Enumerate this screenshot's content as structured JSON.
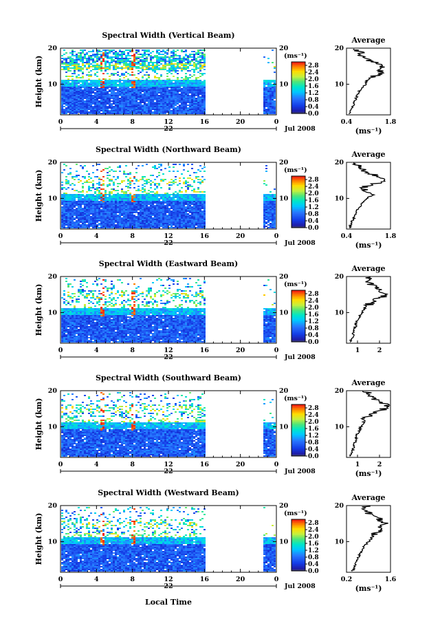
{
  "figure": {
    "ylabel": "Height (km)",
    "xlabel": "Local Time",
    "date_label": "Jul 2008",
    "day_label": "22",
    "x_ticks": [
      "0",
      "4",
      "8",
      "12",
      "16",
      "20",
      "0"
    ],
    "y_ticks": [
      "20",
      "10"
    ],
    "avg_title": "Average",
    "unit_label": "(ms⁻¹)",
    "colorbar_ticks": [
      "2.8",
      "2.4",
      "2.0",
      "1.6",
      "1.2",
      "0.8",
      "0.4",
      "0.0"
    ]
  },
  "chart_data": [
    {
      "type": "heatmap",
      "title": "Spectral Width (Vertical Beam)",
      "xlabel": "Local Time",
      "ylabel": "Height (km)",
      "xlim": [
        0,
        24
      ],
      "ylim": [
        1.5,
        20
      ],
      "data_until_hour": 16,
      "resume_hour": 22.5,
      "colorbar": {
        "label": "(ms⁻¹)",
        "range": [
          0,
          3.0
        ],
        "ticks": [
          0.0,
          0.4,
          0.8,
          1.2,
          1.6,
          2.0,
          2.4,
          2.8
        ]
      },
      "average_profile": {
        "title": "Average",
        "xlabel": "(ms⁻¹)",
        "xlim": [
          0.4,
          1.8
        ],
        "x_ticks": [
          "0.4",
          "1.8"
        ],
        "y_ticks": [
          "20",
          "10"
        ],
        "height_km": [
          2,
          3,
          4,
          5,
          6,
          7,
          8,
          9,
          10,
          11,
          12,
          13,
          14,
          15,
          16,
          17,
          18,
          19,
          20
        ],
        "values": [
          0.5,
          0.55,
          0.6,
          0.65,
          0.7,
          0.75,
          0.8,
          0.9,
          1.0,
          1.05,
          1.2,
          1.45,
          1.55,
          1.6,
          1.3,
          1.0,
          0.85,
          0.8,
          0.75
        ]
      }
    },
    {
      "type": "heatmap",
      "title": "Spectral Width (Northward Beam)",
      "xlabel": "Local Time",
      "ylabel": "Height (km)",
      "xlim": [
        0,
        24
      ],
      "ylim": [
        1.5,
        20
      ],
      "data_until_hour": 16,
      "resume_hour": 22.5,
      "colorbar": {
        "label": "(ms⁻¹)",
        "range": [
          0,
          3.0
        ],
        "ticks": [
          0.0,
          0.4,
          0.8,
          1.2,
          1.6,
          2.0,
          2.4,
          2.8
        ]
      },
      "average_profile": {
        "title": "Average",
        "xlabel": "(ms⁻¹)",
        "xlim": [
          0.4,
          1.8
        ],
        "x_ticks": [
          "0.4",
          "1.8"
        ],
        "y_ticks": [
          "20",
          "10"
        ],
        "height_km": [
          2,
          3,
          4,
          5,
          6,
          7,
          8,
          9,
          10,
          11,
          12,
          13,
          14,
          15,
          16,
          17,
          18,
          19,
          20
        ],
        "values": [
          0.5,
          0.55,
          0.6,
          0.65,
          0.7,
          0.75,
          0.85,
          0.95,
          1.05,
          1.25,
          1.0,
          0.9,
          1.3,
          1.55,
          1.45,
          1.1,
          0.9,
          0.8,
          0.7
        ]
      }
    },
    {
      "type": "heatmap",
      "title": "Spectral Width (Eastward Beam)",
      "xlabel": "Local Time",
      "ylabel": "Height (km)",
      "xlim": [
        0,
        24
      ],
      "ylim": [
        1.5,
        20
      ],
      "data_until_hour": 16,
      "resume_hour": 22.5,
      "colorbar": {
        "label": "(ms⁻¹)",
        "range": [
          0,
          3.0
        ],
        "ticks": [
          0.0,
          0.4,
          0.8,
          1.2,
          1.6,
          2.0,
          2.4,
          2.8
        ]
      },
      "average_profile": {
        "title": "Average",
        "xlabel": "",
        "xlim": [
          0.5,
          2.5
        ],
        "x_ticks": [
          "1",
          "2"
        ],
        "y_ticks": [
          "20",
          "10"
        ],
        "height_km": [
          2,
          3,
          4,
          5,
          6,
          7,
          8,
          9,
          10,
          11,
          12,
          13,
          14,
          15,
          16,
          17,
          18,
          19,
          20
        ],
        "values": [
          0.7,
          0.75,
          0.8,
          0.85,
          0.9,
          0.95,
          1.0,
          1.1,
          1.2,
          1.3,
          1.45,
          1.7,
          2.0,
          2.3,
          2.1,
          1.8,
          1.6,
          1.5,
          1.4
        ]
      }
    },
    {
      "type": "heatmap",
      "title": "Spectral Width (Southward Beam)",
      "xlabel": "Local Time",
      "ylabel": "Height (km)",
      "xlim": [
        0,
        24
      ],
      "ylim": [
        1.5,
        20
      ],
      "data_until_hour": 16,
      "resume_hour": 22.5,
      "colorbar": {
        "label": "(ms⁻¹)",
        "range": [
          0,
          3.0
        ],
        "ticks": [
          0.0,
          0.4,
          0.8,
          1.2,
          1.6,
          2.0,
          2.4,
          2.8
        ]
      },
      "average_profile": {
        "title": "Average",
        "xlabel": "(ms⁻¹)",
        "xlim": [
          0.5,
          2.5
        ],
        "x_ticks": [
          "1",
          "2"
        ],
        "y_ticks": [
          "20",
          "10"
        ],
        "height_km": [
          2,
          3,
          4,
          5,
          6,
          7,
          8,
          9,
          10,
          11,
          12,
          13,
          14,
          15,
          16,
          17,
          18,
          19,
          20
        ],
        "values": [
          0.7,
          0.75,
          0.8,
          0.85,
          0.9,
          0.95,
          1.0,
          1.1,
          1.15,
          1.25,
          1.35,
          1.5,
          1.9,
          2.2,
          2.3,
          1.9,
          1.6,
          1.5,
          1.4
        ]
      }
    },
    {
      "type": "heatmap",
      "title": "Spectral Width (Westward Beam)",
      "xlabel": "Local Time",
      "ylabel": "Height (km)",
      "xlim": [
        0,
        24
      ],
      "ylim": [
        1.5,
        20
      ],
      "data_until_hour": 16,
      "resume_hour": 22.5,
      "colorbar": {
        "label": "(ms⁻¹)",
        "range": [
          0,
          3.0
        ],
        "ticks": [
          0.0,
          0.4,
          0.8,
          1.2,
          1.6,
          2.0,
          2.4,
          2.8
        ]
      },
      "average_profile": {
        "title": "Average",
        "xlabel": "(ms⁻¹)",
        "xlim": [
          0.2,
          1.6
        ],
        "x_ticks": [
          "0.2",
          "1.6"
        ],
        "y_ticks": [
          "20",
          "10"
        ],
        "height_km": [
          2,
          3,
          4,
          5,
          6,
          7,
          8,
          9,
          10,
          11,
          12,
          13,
          14,
          15,
          16,
          17,
          18,
          19,
          20
        ],
        "values": [
          0.4,
          0.45,
          0.5,
          0.55,
          0.6,
          0.65,
          0.7,
          0.8,
          0.9,
          1.0,
          1.05,
          1.2,
          1.35,
          1.45,
          1.3,
          1.1,
          0.9,
          0.85,
          0.8
        ]
      }
    }
  ]
}
